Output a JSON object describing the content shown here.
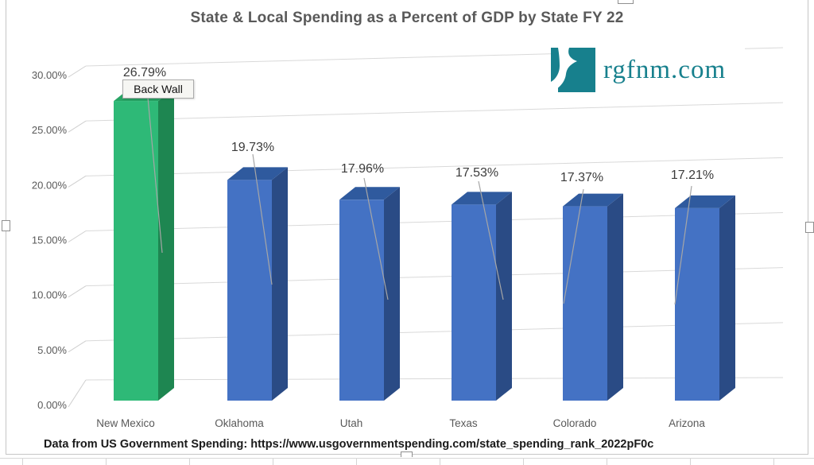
{
  "chart_data": {
    "type": "bar",
    "style": "3d-column",
    "title": "State & Local Spending as a Percent of GDP by State FY 22",
    "categories": [
      "New Mexico",
      "Oklahoma",
      "Utah",
      "Texas",
      "Colorado",
      "Arizona"
    ],
    "values": [
      26.79,
      19.73,
      17.96,
      17.53,
      17.37,
      17.21
    ],
    "data_labels": [
      "26.79%",
      "19.73%",
      "17.96%",
      "17.53%",
      "17.37%",
      "17.21%"
    ],
    "xlabel": "",
    "ylabel": "",
    "ylim": [
      0,
      30
    ],
    "y_ticks": [
      "0.00%",
      "5.00%",
      "10.00%",
      "15.00%",
      "20.00%",
      "25.00%",
      "30.00%"
    ],
    "grid": true,
    "legend": false,
    "highlighted_category": "New Mexico",
    "colors": {
      "highlight_front": "#2eb977",
      "highlight_side": "#1e8651",
      "highlight_top": "#28a465",
      "default_front": "#4472c4",
      "default_side": "#2a4b85",
      "default_top": "#2f5a9e",
      "gridline": "#d9d9d9",
      "axis_text": "#595959",
      "label_text": "#3b3b3b",
      "leader_line": "#a6a6a6"
    }
  },
  "tooltip": {
    "text": "Back Wall"
  },
  "logo": {
    "text": "rgfnm.com",
    "color": "#17808d"
  },
  "footer": {
    "text": "Data from US Government Spending: https://www.usgovernmentspending.com/state_spending_rank_2022pF0c"
  }
}
